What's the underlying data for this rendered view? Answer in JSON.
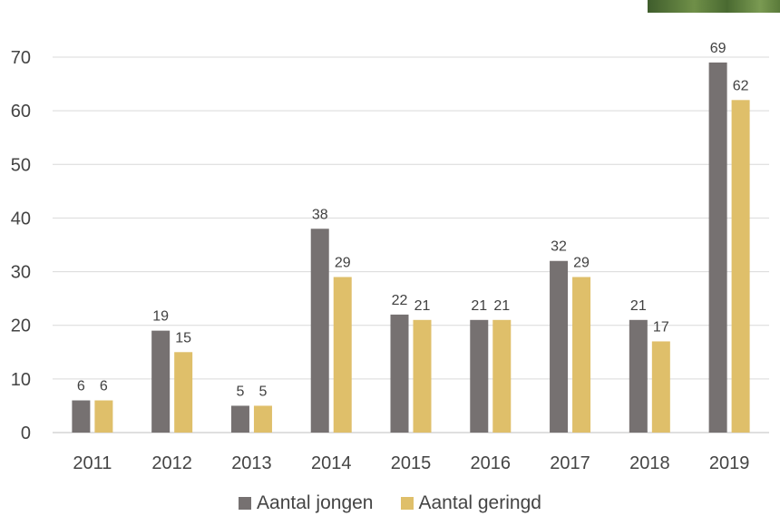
{
  "chart_data": {
    "type": "bar",
    "categories": [
      "2011",
      "2012",
      "2013",
      "2014",
      "2015",
      "2016",
      "2017",
      "2018",
      "2019"
    ],
    "series": [
      {
        "name": "Aantal jongen",
        "color": "#767171",
        "values": [
          6,
          19,
          5,
          38,
          22,
          21,
          32,
          21,
          69
        ]
      },
      {
        "name": "Aantal geringd",
        "color": "#dfbf6a",
        "values": [
          6,
          15,
          5,
          29,
          21,
          21,
          29,
          17,
          62
        ]
      }
    ],
    "yticks": [
      "0",
      "10",
      "20",
      "30",
      "40",
      "50",
      "60",
      "70"
    ],
    "ylim": [
      0,
      70
    ],
    "grid": true,
    "legend_position": "bottom",
    "data_labels": true
  }
}
